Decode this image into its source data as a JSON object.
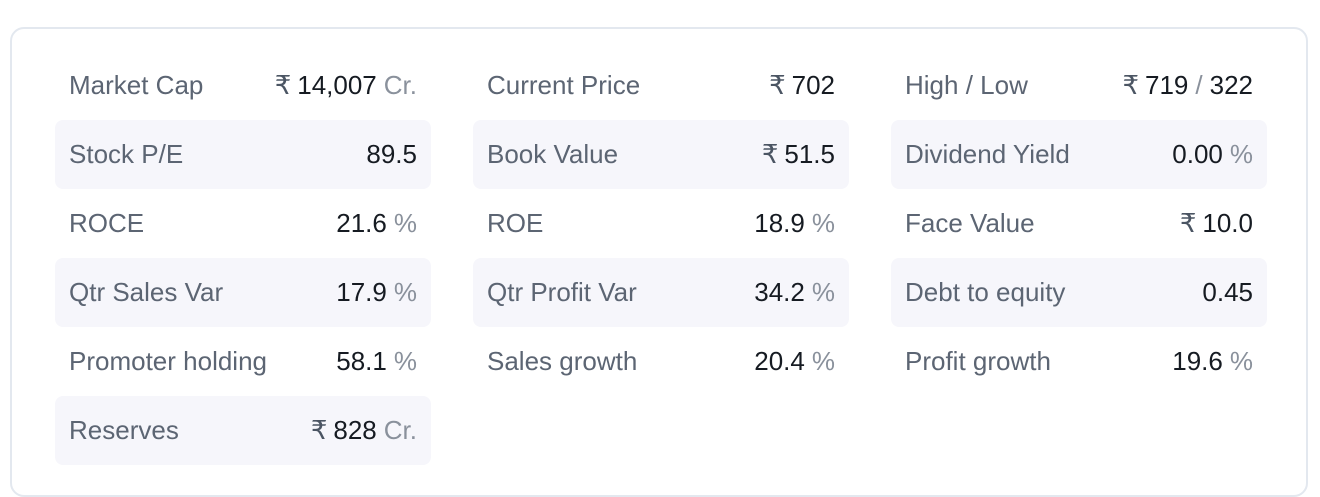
{
  "ratios": [
    {
      "label": "Market Cap",
      "currency": "₹",
      "value": "14,007",
      "unit": "Cr."
    },
    {
      "label": "Current Price",
      "currency": "₹",
      "value": "702",
      "unit": ""
    },
    {
      "label": "High / Low",
      "currency": "₹",
      "value": "719",
      "separator": "/",
      "value2": "322",
      "unit": ""
    },
    {
      "label": "Stock P/E",
      "currency": "",
      "value": "89.5",
      "unit": ""
    },
    {
      "label": "Book Value",
      "currency": "₹",
      "value": "51.5",
      "unit": ""
    },
    {
      "label": "Dividend Yield",
      "currency": "",
      "value": "0.00",
      "unit": "%"
    },
    {
      "label": "ROCE",
      "currency": "",
      "value": "21.6",
      "unit": "%"
    },
    {
      "label": "ROE",
      "currency": "",
      "value": "18.9",
      "unit": "%"
    },
    {
      "label": "Face Value",
      "currency": "₹",
      "value": "10.0",
      "unit": ""
    },
    {
      "label": "Qtr Sales Var",
      "currency": "",
      "value": "17.9",
      "unit": "%"
    },
    {
      "label": "Qtr Profit Var",
      "currency": "",
      "value": "34.2",
      "unit": "%"
    },
    {
      "label": "Debt to equity",
      "currency": "",
      "value": "0.45",
      "unit": ""
    },
    {
      "label": "Promoter holding",
      "currency": "",
      "value": "58.1",
      "unit": "%"
    },
    {
      "label": "Sales growth",
      "currency": "",
      "value": "20.4",
      "unit": "%"
    },
    {
      "label": "Profit growth",
      "currency": "",
      "value": "19.6",
      "unit": "%"
    },
    {
      "label": "Reserves",
      "currency": "₹",
      "value": "828",
      "unit": "Cr."
    }
  ],
  "colors": {
    "shaded_row": "#f6f6fb",
    "label": "#5c6573",
    "value": "#161b22",
    "unit": "#8a919c",
    "border": "#e3e8ef"
  }
}
